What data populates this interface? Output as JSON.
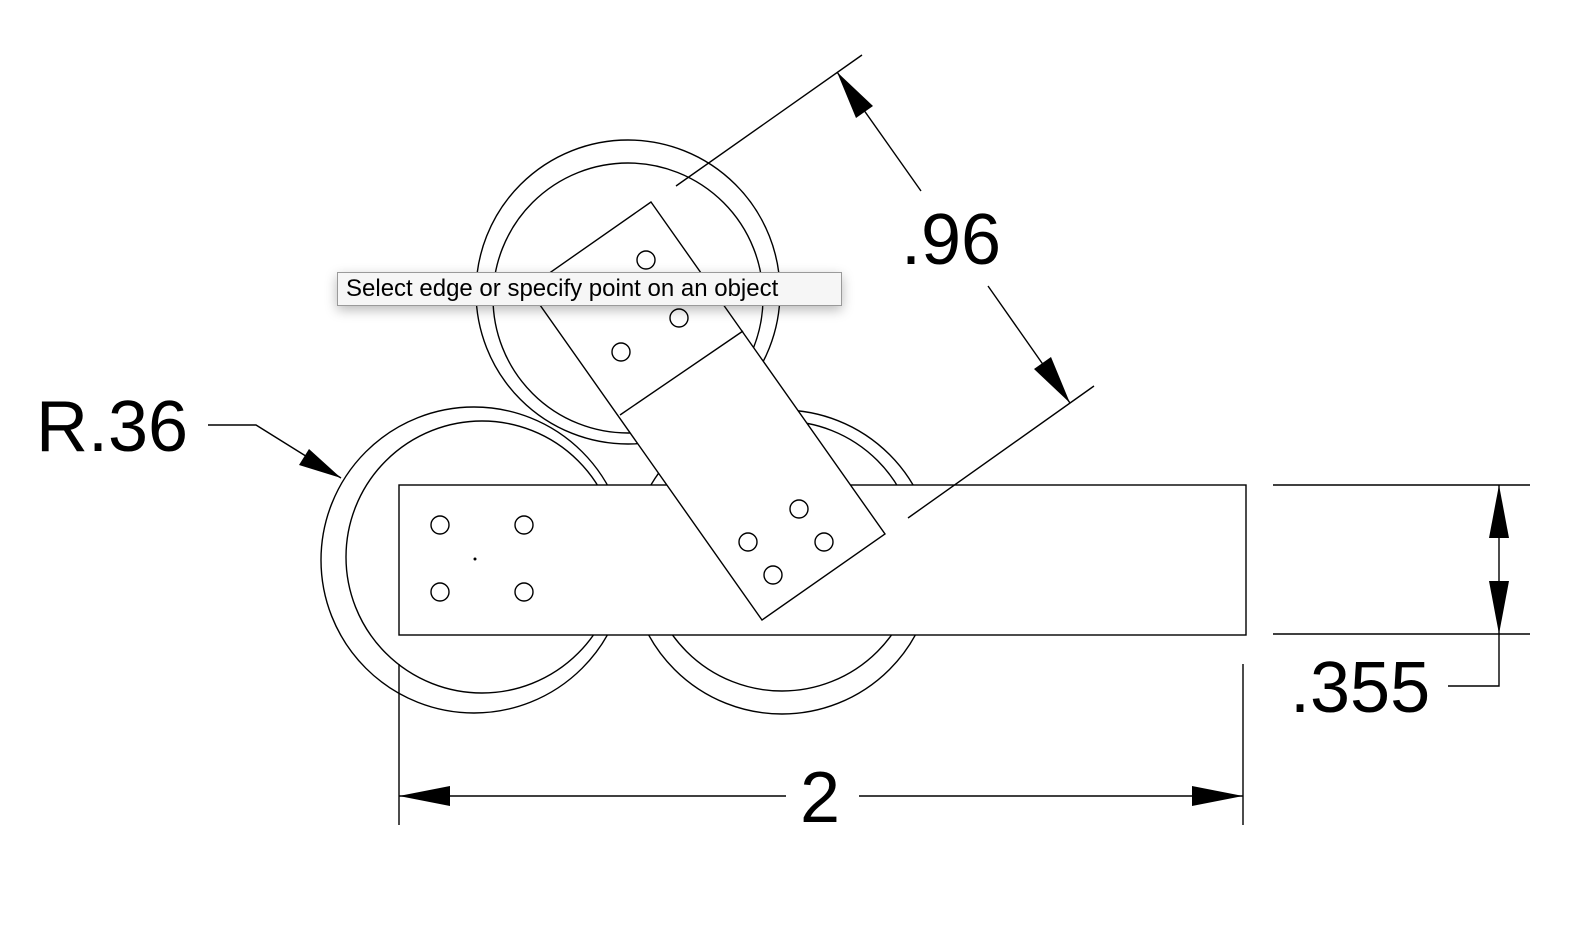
{
  "drawing": {
    "dimensions": {
      "radius_label": "R.36",
      "diagonal_length_label": ".96",
      "height_label": ".355",
      "width_label": "2"
    },
    "line_color": "#000000",
    "background_color": "#ffffff"
  },
  "tooltip": {
    "text": "Select edge or specify point on an object"
  }
}
